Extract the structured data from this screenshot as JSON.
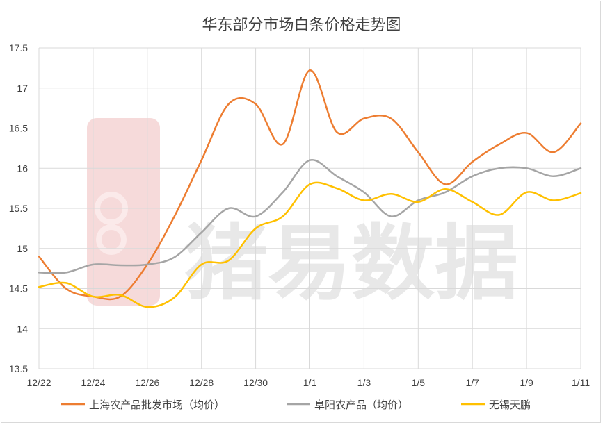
{
  "chart_data": {
    "type": "line",
    "title": "华东部分市场白条价格走势图",
    "watermark": "猪易数据",
    "x": [
      "12/22",
      "12/23",
      "12/24",
      "12/25",
      "12/26",
      "12/27",
      "12/28",
      "12/29",
      "12/30",
      "12/31",
      "1/1",
      "1/2",
      "1/3",
      "1/4",
      "1/5",
      "1/6",
      "1/7",
      "1/8",
      "1/9",
      "1/10",
      "1/11"
    ],
    "xtick_labels": [
      "12/22",
      "12/24",
      "12/26",
      "12/28",
      "12/30",
      "1/1",
      "1/3",
      "1/5",
      "1/7",
      "1/9",
      "1/11"
    ],
    "ylim": [
      13.5,
      17.5
    ],
    "yticks": [
      13.5,
      14,
      14.5,
      15,
      15.5,
      16,
      16.5,
      17,
      17.5
    ],
    "ytick_labels": [
      "13.5",
      "14",
      "14.5",
      "15",
      "15.5",
      "16",
      "16.5",
      "17",
      "17.5"
    ],
    "grid": true,
    "legend_position": "bottom",
    "series": [
      {
        "name": "上海农产品批发市场（均价）",
        "color": "#ED7D31",
        "values": [
          14.9,
          14.5,
          14.4,
          14.4,
          14.8,
          15.4,
          16.1,
          16.8,
          16.8,
          16.3,
          17.22,
          16.45,
          16.62,
          16.62,
          16.2,
          15.8,
          16.08,
          16.3,
          16.44,
          16.2,
          16.56
        ]
      },
      {
        "name": "阜阳农产品（均价）",
        "color": "#A5A5A5",
        "values": [
          14.7,
          14.7,
          14.8,
          14.79,
          14.8,
          14.89,
          15.2,
          15.5,
          15.4,
          15.7,
          16.1,
          15.9,
          15.7,
          15.4,
          15.6,
          15.7,
          15.9,
          16.0,
          16.0,
          15.9,
          16.0
        ]
      },
      {
        "name": "无锡天鹏",
        "color": "#FFC000",
        "values": [
          14.52,
          14.57,
          14.4,
          14.42,
          14.27,
          14.39,
          14.8,
          14.85,
          15.25,
          15.4,
          15.8,
          15.75,
          15.6,
          15.68,
          15.58,
          15.74,
          15.58,
          15.42,
          15.7,
          15.6,
          15.69
        ]
      }
    ]
  }
}
